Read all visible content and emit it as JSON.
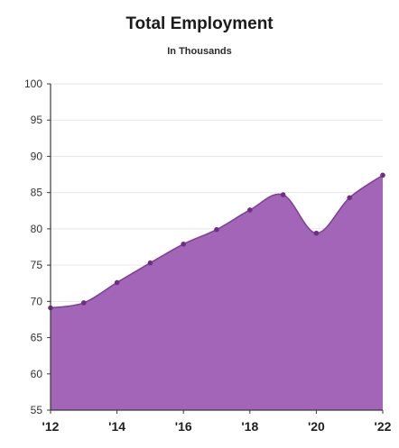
{
  "chart_data": {
    "type": "area",
    "title": "Total Employment",
    "subtitle": "In Thousands",
    "xlabel": "",
    "ylabel": "",
    "x": [
      2012,
      2013,
      2014,
      2015,
      2016,
      2017,
      2018,
      2019,
      2020,
      2021,
      2022
    ],
    "x_tick_values": [
      2012,
      2014,
      2016,
      2018,
      2020,
      2022
    ],
    "x_tick_labels": [
      "'12",
      "'14",
      "'16",
      "'18",
      "'20",
      "'22"
    ],
    "y_tick_values": [
      55,
      60,
      65,
      70,
      75,
      80,
      85,
      90,
      95,
      100
    ],
    "y_tick_labels": [
      "55",
      "60",
      "65",
      "70",
      "75",
      "80",
      "85",
      "90",
      "95",
      "100"
    ],
    "series": [
      {
        "values": [
          69.1,
          69.8,
          72.6,
          75.3,
          77.9,
          79.9,
          82.6,
          84.7,
          79.4,
          84.3,
          87.4
        ]
      }
    ],
    "ylim": [
      55,
      100
    ],
    "xlim": [
      2012,
      2022
    ],
    "grid": true,
    "legend": "none",
    "colors": {
      "fill": "#a265b7",
      "line": "#7d3f95",
      "marker": "#6b2f86",
      "grid": "#e6e6e6",
      "axis": "#3a3a3a"
    }
  }
}
